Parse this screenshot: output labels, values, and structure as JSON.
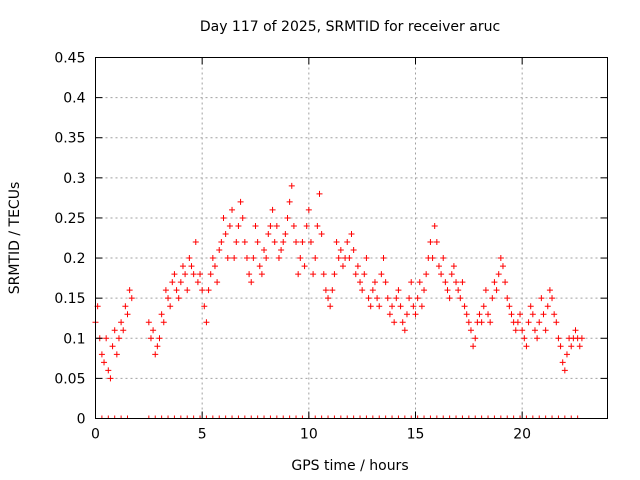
{
  "chart_data": {
    "type": "scatter",
    "title": "Day 117 of 2025, SRMTID for receiver aruc",
    "xlabel": "GPS time / hours",
    "ylabel": "SRMTID / TECUs",
    "xlim": [
      0,
      24
    ],
    "ylim": [
      0,
      0.45
    ],
    "grid": true,
    "marker": "+",
    "color": "#ff0000",
    "x_ticks": [
      0,
      5,
      10,
      15,
      20
    ],
    "x_tick_labels": [
      "0",
      "5",
      "10",
      "15",
      "20"
    ],
    "y_ticks": [
      0,
      0.05,
      0.1,
      0.15,
      0.2,
      0.25,
      0.3,
      0.35,
      0.4,
      0.45
    ],
    "y_tick_labels": [
      "0",
      "0.05",
      "0.1",
      "0.15",
      "0.2",
      "0.25",
      "0.3",
      "0.35",
      "0.4",
      "0.45"
    ],
    "series": [
      {
        "name": "SRMTID",
        "x": [
          0.0,
          0.1,
          0.2,
          0.3,
          0.4,
          0.5,
          0.6,
          0.7,
          0.8,
          0.9,
          1.0,
          1.1,
          1.2,
          1.3,
          1.4,
          1.5,
          1.6,
          1.7,
          2.5,
          2.6,
          2.7,
          2.8,
          2.9,
          3.0,
          3.1,
          3.2,
          3.3,
          3.4,
          3.5,
          3.6,
          3.7,
          3.8,
          3.9,
          4.0,
          4.1,
          4.2,
          4.3,
          4.4,
          4.5,
          4.6,
          4.7,
          4.8,
          4.9,
          5.0,
          5.1,
          5.2,
          5.3,
          5.4,
          5.5,
          5.6,
          5.7,
          5.8,
          5.9,
          6.0,
          6.1,
          6.2,
          6.3,
          6.4,
          6.5,
          6.6,
          6.7,
          6.8,
          6.9,
          7.0,
          7.1,
          7.2,
          7.3,
          7.4,
          7.5,
          7.6,
          7.7,
          7.8,
          7.9,
          8.0,
          8.1,
          8.2,
          8.3,
          8.4,
          8.5,
          8.6,
          8.7,
          8.8,
          8.9,
          9.0,
          9.1,
          9.2,
          9.3,
          9.4,
          9.5,
          9.6,
          9.7,
          9.8,
          9.9,
          10.0,
          10.1,
          10.2,
          10.3,
          10.4,
          10.5,
          10.6,
          10.7,
          10.8,
          10.9,
          11.0,
          11.1,
          11.2,
          11.3,
          11.4,
          11.5,
          11.6,
          11.7,
          11.8,
          11.9,
          12.0,
          12.1,
          12.2,
          12.3,
          12.4,
          12.5,
          12.6,
          12.7,
          12.8,
          12.9,
          13.0,
          13.1,
          13.2,
          13.3,
          13.4,
          13.5,
          13.6,
          13.7,
          13.8,
          13.9,
          14.0,
          14.1,
          14.2,
          14.3,
          14.4,
          14.5,
          14.6,
          14.7,
          14.8,
          14.9,
          15.0,
          15.1,
          15.2,
          15.3,
          15.4,
          15.5,
          15.6,
          15.7,
          15.8,
          15.9,
          16.0,
          16.1,
          16.2,
          16.3,
          16.4,
          16.5,
          16.6,
          16.7,
          16.8,
          16.9,
          17.0,
          17.1,
          17.2,
          17.3,
          17.4,
          17.5,
          17.6,
          17.7,
          17.8,
          17.9,
          18.0,
          18.1,
          18.2,
          18.3,
          18.4,
          18.5,
          18.6,
          18.7,
          18.8,
          18.9,
          19.0,
          19.1,
          19.2,
          19.3,
          19.4,
          19.5,
          19.6,
          19.7,
          19.8,
          19.9,
          20.0,
          20.1,
          20.2,
          20.3,
          20.4,
          20.5,
          20.6,
          20.7,
          20.8,
          20.9,
          21.0,
          21.1,
          21.2,
          21.3,
          21.4,
          21.5,
          21.6,
          21.7,
          21.8,
          21.9,
          22.0,
          22.1,
          22.2,
          22.3,
          22.4,
          22.5,
          22.6,
          22.7,
          22.8
        ],
        "y": [
          0.12,
          0.14,
          0.1,
          0.08,
          0.07,
          0.1,
          0.06,
          0.05,
          0.09,
          0.11,
          0.08,
          0.1,
          0.12,
          0.11,
          0.14,
          0.13,
          0.16,
          0.15,
          0.12,
          0.1,
          0.11,
          0.08,
          0.09,
          0.1,
          0.13,
          0.12,
          0.16,
          0.15,
          0.14,
          0.17,
          0.18,
          0.16,
          0.15,
          0.17,
          0.19,
          0.18,
          0.16,
          0.2,
          0.19,
          0.18,
          0.22,
          0.17,
          0.18,
          0.16,
          0.14,
          0.12,
          0.16,
          0.18,
          0.2,
          0.19,
          0.17,
          0.21,
          0.22,
          0.25,
          0.23,
          0.2,
          0.24,
          0.26,
          0.2,
          0.22,
          0.24,
          0.27,
          0.25,
          0.22,
          0.2,
          0.18,
          0.17,
          0.2,
          0.24,
          0.22,
          0.19,
          0.18,
          0.21,
          0.2,
          0.23,
          0.24,
          0.26,
          0.22,
          0.24,
          0.2,
          0.21,
          0.22,
          0.23,
          0.25,
          0.27,
          0.29,
          0.24,
          0.22,
          0.18,
          0.2,
          0.22,
          0.19,
          0.24,
          0.26,
          0.22,
          0.18,
          0.2,
          0.24,
          0.28,
          0.23,
          0.18,
          0.16,
          0.15,
          0.14,
          0.16,
          0.18,
          0.22,
          0.2,
          0.21,
          0.19,
          0.2,
          0.22,
          0.2,
          0.23,
          0.21,
          0.18,
          0.19,
          0.17,
          0.16,
          0.18,
          0.2,
          0.15,
          0.14,
          0.16,
          0.17,
          0.15,
          0.14,
          0.18,
          0.2,
          0.17,
          0.15,
          0.13,
          0.14,
          0.12,
          0.15,
          0.16,
          0.14,
          0.12,
          0.11,
          0.13,
          0.15,
          0.17,
          0.14,
          0.13,
          0.15,
          0.17,
          0.14,
          0.16,
          0.18,
          0.2,
          0.22,
          0.2,
          0.24,
          0.22,
          0.19,
          0.18,
          0.2,
          0.17,
          0.16,
          0.15,
          0.18,
          0.19,
          0.17,
          0.16,
          0.15,
          0.17,
          0.14,
          0.13,
          0.12,
          0.11,
          0.09,
          0.1,
          0.12,
          0.13,
          0.12,
          0.14,
          0.16,
          0.13,
          0.12,
          0.15,
          0.17,
          0.16,
          0.18,
          0.2,
          0.19,
          0.17,
          0.15,
          0.14,
          0.13,
          0.12,
          0.11,
          0.12,
          0.13,
          0.11,
          0.1,
          0.09,
          0.12,
          0.14,
          0.13,
          0.11,
          0.1,
          0.12,
          0.15,
          0.13,
          0.11,
          0.14,
          0.16,
          0.15,
          0.13,
          0.12,
          0.1,
          0.09,
          0.07,
          0.06,
          0.08,
          0.1,
          0.09,
          0.1,
          0.11,
          0.1,
          0.09,
          0.1
        ]
      }
    ]
  }
}
